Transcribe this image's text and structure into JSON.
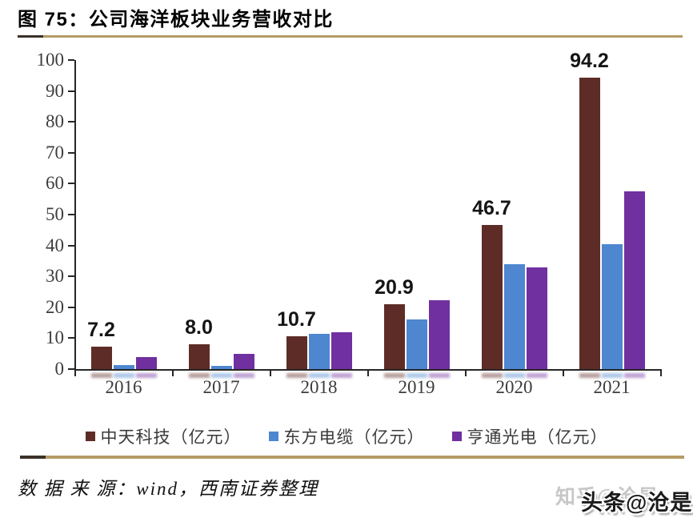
{
  "figure_title": "图 75：公司海洋板块业务营收对比",
  "chart_data": {
    "type": "bar",
    "title": "公司海洋板块业务营收对比",
    "categories": [
      "2016",
      "2017",
      "2018",
      "2019",
      "2020",
      "2021"
    ],
    "series": [
      {
        "name": "中天科技（亿元）",
        "color": "#5e2c26",
        "values": [
          7.2,
          8.0,
          10.7,
          20.9,
          46.7,
          94.2
        ],
        "data_labels": [
          "7.2",
          "8.0",
          "10.7",
          "20.9",
          "46.7",
          "94.2"
        ]
      },
      {
        "name": "东方电缆（亿元）",
        "color": "#4e86d0",
        "values": [
          1.4,
          1.1,
          11.5,
          16.0,
          34.0,
          40.5
        ]
      },
      {
        "name": "亨通光电（亿元）",
        "color": "#7030a0",
        "values": [
          4.0,
          5.0,
          11.9,
          22.4,
          32.8,
          57.5
        ]
      }
    ],
    "ylim": [
      0,
      100
    ],
    "ytick_step": 10,
    "xlabel": "",
    "ylabel": "",
    "grid": false,
    "legend_position": "bottom"
  },
  "source_note": "数 据 来 源：wind，西南证券整理",
  "watermark": {
    "back_text": "知乎@沧是",
    "front_text": "头条@沧是"
  },
  "colors": {
    "separator_gold": "#b59b64",
    "separator_dark": "#3a3128",
    "axis": "#262626",
    "tick_label": "#3d3d3d",
    "bar_label": "#151515"
  }
}
